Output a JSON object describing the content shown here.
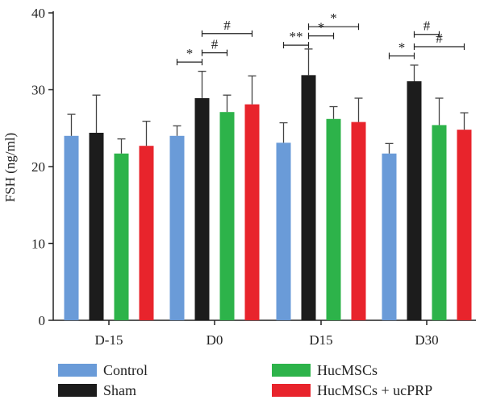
{
  "chart_data": {
    "type": "bar",
    "title": "",
    "xlabel": "",
    "ylabel": "FSH (ng/ml)",
    "ylim": [
      0,
      40
    ],
    "yticks": [
      0,
      10,
      20,
      30,
      40
    ],
    "grid": false,
    "legend_position": "bottom",
    "categories": [
      "D-15",
      "D0",
      "D15",
      "D30"
    ],
    "series": [
      {
        "name": "Control",
        "color": "#6a9bd8",
        "values": [
          24.0,
          24.0,
          23.1,
          21.7
        ],
        "errors": [
          2.8,
          1.3,
          2.6,
          1.3
        ]
      },
      {
        "name": "Sham",
        "color": "#1c1c1c",
        "values": [
          24.4,
          28.9,
          31.9,
          31.1
        ],
        "errors": [
          4.9,
          3.5,
          3.4,
          2.1
        ]
      },
      {
        "name": "HucMSCs",
        "color": "#2db34a",
        "values": [
          21.7,
          27.1,
          26.2,
          25.4
        ],
        "errors": [
          1.9,
          2.2,
          1.6,
          3.5
        ]
      },
      {
        "name": "HucMSCs + ucPRP",
        "color": "#e8242c",
        "values": [
          22.7,
          28.1,
          25.8,
          24.8
        ],
        "errors": [
          3.2,
          3.7,
          3.1,
          2.2
        ]
      }
    ],
    "significance": [
      {
        "category": "D0",
        "from": 0,
        "to": 1,
        "label": "*",
        "y": 33.6
      },
      {
        "category": "D0",
        "from": 1,
        "to": 2,
        "label": "#",
        "y": 34.8
      },
      {
        "category": "D0",
        "from": 1,
        "to": 3,
        "label": "#",
        "y": 37.3
      },
      {
        "category": "D15",
        "from": 0,
        "to": 1,
        "label": "**",
        "y": 35.8
      },
      {
        "category": "D15",
        "from": 1,
        "to": 2,
        "label": "*",
        "y": 37.0
      },
      {
        "category": "D15",
        "from": 1,
        "to": 3,
        "label": "*",
        "y": 38.2
      },
      {
        "category": "D30",
        "from": 0,
        "to": 1,
        "label": "*",
        "y": 34.4
      },
      {
        "category": "D30",
        "from": 1,
        "to": 2,
        "label": "#",
        "y": 37.2
      },
      {
        "category": "D30",
        "from": 1,
        "to": 3,
        "label": "#",
        "y": 35.6
      }
    ]
  }
}
